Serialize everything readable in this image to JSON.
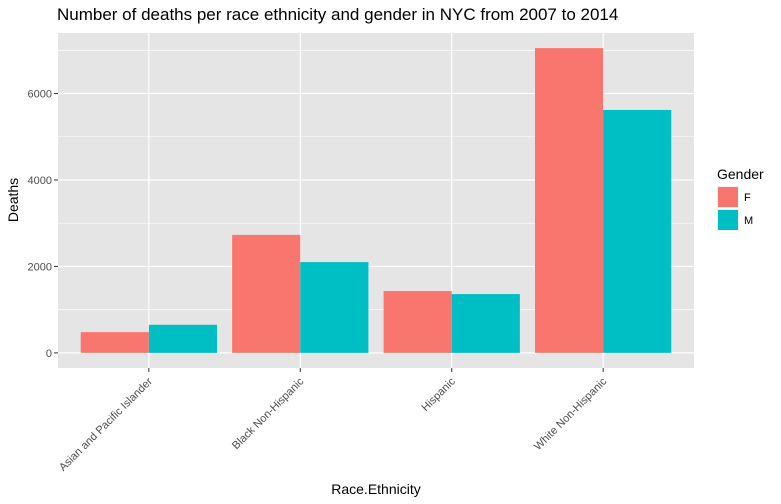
{
  "chart_data": {
    "type": "bar",
    "title": "Number of deaths per race ethnicity and gender in NYC from 2007 to 2014",
    "xlabel": "Race.Ethnicity",
    "ylabel": "Deaths",
    "categories": [
      "Asian and Pacific Islander",
      "Black Non-Hispanic",
      "Hispanic",
      "White Non-Hispanic"
    ],
    "series": [
      {
        "name": "F",
        "values": [
          480,
          2730,
          1430,
          7050
        ],
        "color": "#F8766D"
      },
      {
        "name": "M",
        "values": [
          650,
          2100,
          1360,
          5620
        ],
        "color": "#00BFC4"
      }
    ],
    "ylim": [
      -350,
      7400
    ],
    "yticks": [
      0,
      2000,
      4000,
      6000
    ],
    "ytick_labels": [
      "0",
      "2000",
      "4000",
      "6000"
    ],
    "grid": true,
    "legend": {
      "title": "Gender",
      "placement": "right",
      "entries": [
        "F",
        "M"
      ]
    },
    "panel_background": "#E5E5E5",
    "grid_color": "#FFFFFF"
  }
}
